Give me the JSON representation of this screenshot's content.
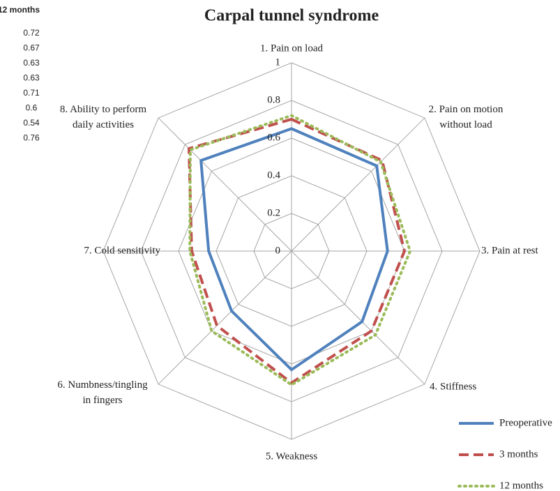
{
  "chart_data": {
    "type": "radar",
    "title": "Carpal tunnel syndrome",
    "categories": [
      "1. Pain on load",
      "2. Pain on motion without load",
      "3. Pain at rest",
      "4. Stiffness",
      "5. Weakness",
      "6. Numbness/tingling in fingers",
      "7. Cold sensitivity",
      "8. Ability to perform daily activities"
    ],
    "series": [
      {
        "name": "Preoperative",
        "color": "#4f81bd",
        "dash": "solid",
        "values": [
          0.65,
          0.64,
          0.51,
          0.53,
          0.63,
          0.45,
          0.44,
          0.68
        ]
      },
      {
        "name": "3 months",
        "color": "#c0504d",
        "dash": "dashed",
        "values": [
          0.7,
          0.68,
          0.6,
          0.6,
          0.7,
          0.56,
          0.53,
          0.77
        ]
      },
      {
        "name": "12 months",
        "color": "#9bbb59",
        "dash": "dotted",
        "values": [
          0.72,
          0.67,
          0.63,
          0.63,
          0.71,
          0.6,
          0.54,
          0.76
        ]
      }
    ],
    "ylim": [
      0,
      1
    ],
    "yticks": [
      0,
      0.2,
      0.4,
      0.6,
      0.8,
      1
    ],
    "grid": true
  }
}
